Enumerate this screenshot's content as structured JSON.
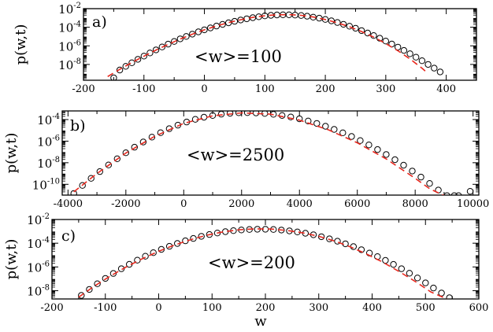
{
  "chart_data": [
    {
      "type": "scatter",
      "panel_label": "a)",
      "annotation": "<w>=100",
      "ylabel": "p(w,t)",
      "xlabel": "",
      "yscale": "log",
      "xlim": [
        -200,
        450
      ],
      "ylim_log10": [
        -9.7,
        -2
      ],
      "x_ticks": [
        -200,
        -100,
        0,
        100,
        200,
        300,
        400
      ],
      "x_tick_labels": [
        "-200",
        "-100",
        "0",
        "100",
        "200",
        "300",
        "400"
      ],
      "y_ticks_log10": [
        -8,
        -6,
        -4,
        -2
      ],
      "y_tick_labels": [
        {
          "base": "10",
          "exp": "-8"
        },
        {
          "base": "10",
          "exp": "-6"
        },
        {
          "base": "10",
          "exp": "-4"
        },
        {
          "base": "10",
          "exp": "-2"
        }
      ],
      "grid": false,
      "series": [
        {
          "kind": "markers",
          "color": "#000000",
          "x": [
            -150,
            -140,
            -130,
            -120,
            -110,
            -100,
            -90,
            -80,
            -70,
            -60,
            -50,
            -40,
            -30,
            -20,
            -10,
            0,
            10,
            20,
            30,
            40,
            50,
            60,
            70,
            80,
            90,
            100,
            110,
            120,
            130,
            140,
            150,
            160,
            170,
            180,
            190,
            200,
            210,
            220,
            230,
            240,
            250,
            260,
            270,
            280,
            290,
            300,
            310,
            320,
            330,
            340,
            350,
            360,
            370,
            380,
            390
          ],
          "y_log10": [
            -9.45,
            -8.6,
            -8.2,
            -7.82,
            -7.45,
            -7.1,
            -6.76,
            -6.43,
            -6.12,
            -5.82,
            -5.53,
            -5.25,
            -4.99,
            -4.74,
            -4.5,
            -4.28,
            -4.07,
            -3.87,
            -3.69,
            -3.52,
            -3.36,
            -3.22,
            -3.09,
            -2.97,
            -2.87,
            -2.78,
            -2.72,
            -2.68,
            -2.66,
            -2.66,
            -2.69,
            -2.74,
            -2.81,
            -2.91,
            -3.02,
            -3.16,
            -3.31,
            -3.49,
            -3.68,
            -3.89,
            -4.11,
            -4.36,
            -4.62,
            -4.89,
            -5.18,
            -5.49,
            -5.81,
            -6.14,
            -6.49,
            -6.85,
            -7.22,
            -7.6,
            -8.0,
            -8.4,
            -8.8
          ]
        },
        {
          "kind": "dashed-line",
          "color": "#e8281e",
          "x": [
            -160,
            -140,
            -120,
            -100,
            -80,
            -60,
            -40,
            -20,
            0,
            20,
            40,
            60,
            80,
            100,
            120,
            140,
            160,
            180,
            200,
            220,
            240,
            260,
            280,
            300,
            320,
            340,
            360,
            370
          ],
          "y_log10": [
            -9.3,
            -8.52,
            -7.8,
            -7.11,
            -6.45,
            -5.84,
            -5.27,
            -4.75,
            -4.28,
            -3.86,
            -3.5,
            -3.19,
            -2.94,
            -2.76,
            -2.66,
            -2.64,
            -2.72,
            -2.9,
            -3.17,
            -3.52,
            -3.95,
            -4.46,
            -5.06,
            -5.75,
            -6.53,
            -7.41,
            -8.41,
            -8.98
          ]
        }
      ]
    },
    {
      "type": "scatter",
      "panel_label": "b)",
      "annotation": "<w>=2500",
      "ylabel": "p(w,t)",
      "xlabel": "",
      "yscale": "log",
      "xlim": [
        -4200,
        10200
      ],
      "ylim_log10": [
        -11,
        -3.2
      ],
      "x_ticks": [
        -4000,
        -2000,
        0,
        2000,
        4000,
        6000,
        8000,
        10000
      ],
      "x_tick_labels": [
        "-4000",
        "-2000",
        "0",
        "2000",
        "4000",
        "6000",
        "8000",
        "10000"
      ],
      "y_ticks_log10": [
        -10,
        -8,
        -6,
        -4
      ],
      "y_tick_labels": [
        {
          "base": "10",
          "exp": "-10"
        },
        {
          "base": "10",
          "exp": "-8"
        },
        {
          "base": "10",
          "exp": "-6"
        },
        {
          "base": "10",
          "exp": "-4"
        }
      ],
      "grid": false,
      "series": [
        {
          "kind": "markers",
          "color": "#000000",
          "x": [
            -3800,
            -3500,
            -3200,
            -2900,
            -2600,
            -2300,
            -2000,
            -1700,
            -1400,
            -1100,
            -800,
            -500,
            -200,
            100,
            400,
            700,
            1000,
            1300,
            1600,
            1900,
            2200,
            2500,
            2800,
            3100,
            3400,
            3700,
            4000,
            4300,
            4600,
            4900,
            5200,
            5500,
            5800,
            6100,
            6400,
            6700,
            7000,
            7300,
            7600,
            7900,
            8200,
            8500,
            8800,
            9100,
            9350,
            9500,
            9900
          ],
          "y_log10": [
            -10.85,
            -10.1,
            -9.45,
            -8.82,
            -8.21,
            -7.63,
            -7.08,
            -6.56,
            -6.08,
            -5.63,
            -5.22,
            -4.85,
            -4.52,
            -4.23,
            -3.98,
            -3.78,
            -3.62,
            -3.5,
            -3.42,
            -3.37,
            -3.36,
            -3.38,
            -3.43,
            -3.51,
            -3.62,
            -3.76,
            -3.93,
            -4.13,
            -4.36,
            -4.62,
            -4.91,
            -5.23,
            -5.57,
            -5.95,
            -6.35,
            -6.78,
            -7.24,
            -7.72,
            -8.23,
            -8.77,
            -9.33,
            -9.92,
            -10.53,
            -11.05,
            -11.05,
            -11.05,
            -10.65
          ]
        },
        {
          "kind": "dashed-line",
          "color": "#e8281e",
          "x": [
            -3800,
            -3000,
            -2000,
            -1000,
            0,
            1000,
            2000,
            3000,
            4000,
            5000,
            6000,
            7000,
            8000,
            8500,
            9000,
            9250
          ],
          "y_log10": [
            -10.7,
            -9.0,
            -7.1,
            -5.55,
            -4.35,
            -3.65,
            -3.38,
            -3.5,
            -4.05,
            -4.95,
            -6.15,
            -7.65,
            -9.45,
            -10.4,
            -11.05,
            -11.2
          ]
        }
      ]
    },
    {
      "type": "scatter",
      "panel_label": "c)",
      "annotation": "<w>=200",
      "ylabel": "p(w,t)",
      "xlabel": "w",
      "yscale": "log",
      "xlim": [
        -200,
        600
      ],
      "ylim_log10": [
        -8.7,
        -2
      ],
      "x_ticks": [
        -200,
        -100,
        0,
        100,
        200,
        300,
        400,
        500,
        600
      ],
      "x_tick_labels": [
        "-200",
        "-100",
        "0",
        "100",
        "200",
        "300",
        "400",
        "500",
        "600"
      ],
      "y_ticks_log10": [
        -8,
        -6,
        -4,
        -2
      ],
      "y_tick_labels": [
        {
          "base": "10",
          "exp": "-8"
        },
        {
          "base": "10",
          "exp": "-6"
        },
        {
          "base": "10",
          "exp": "-4"
        },
        {
          "base": "10",
          "exp": "-2"
        }
      ],
      "grid": false,
      "series": [
        {
          "kind": "markers",
          "color": "#000000",
          "x": [
            -145,
            -130,
            -115,
            -100,
            -85,
            -70,
            -55,
            -40,
            -25,
            -10,
            5,
            20,
            35,
            50,
            65,
            80,
            95,
            110,
            125,
            140,
            155,
            170,
            185,
            200,
            215,
            230,
            245,
            260,
            275,
            290,
            305,
            320,
            335,
            350,
            365,
            380,
            395,
            410,
            425,
            440,
            455,
            470,
            485,
            500,
            515,
            530,
            545
          ],
          "y_log10": [
            -8.4,
            -7.9,
            -7.42,
            -6.97,
            -6.55,
            -6.15,
            -5.78,
            -5.43,
            -5.1,
            -4.8,
            -4.52,
            -4.26,
            -4.02,
            -3.8,
            -3.6,
            -3.42,
            -3.27,
            -3.14,
            -3.03,
            -2.94,
            -2.88,
            -2.84,
            -2.82,
            -2.82,
            -2.84,
            -2.89,
            -2.96,
            -3.05,
            -3.16,
            -3.29,
            -3.45,
            -3.63,
            -3.83,
            -4.05,
            -4.29,
            -4.55,
            -4.83,
            -5.13,
            -5.45,
            -5.79,
            -6.15,
            -6.53,
            -6.93,
            -7.35,
            -7.78,
            -8.2,
            -8.6
          ]
        },
        {
          "kind": "dashed-line",
          "color": "#e8281e",
          "x": [
            -150,
            -120,
            -90,
            -60,
            -30,
            0,
            30,
            60,
            90,
            120,
            150,
            180,
            210,
            240,
            270,
            300,
            330,
            360,
            390,
            420,
            450,
            480,
            510,
            540
          ],
          "y_log10": [
            -8.55,
            -7.6,
            -6.75,
            -5.98,
            -5.29,
            -4.68,
            -4.15,
            -3.7,
            -3.33,
            -3.05,
            -2.87,
            -2.79,
            -2.8,
            -2.92,
            -3.12,
            -3.42,
            -3.82,
            -4.32,
            -4.92,
            -5.6,
            -6.37,
            -7.2,
            -8.1,
            -8.7
          ]
        }
      ]
    }
  ]
}
